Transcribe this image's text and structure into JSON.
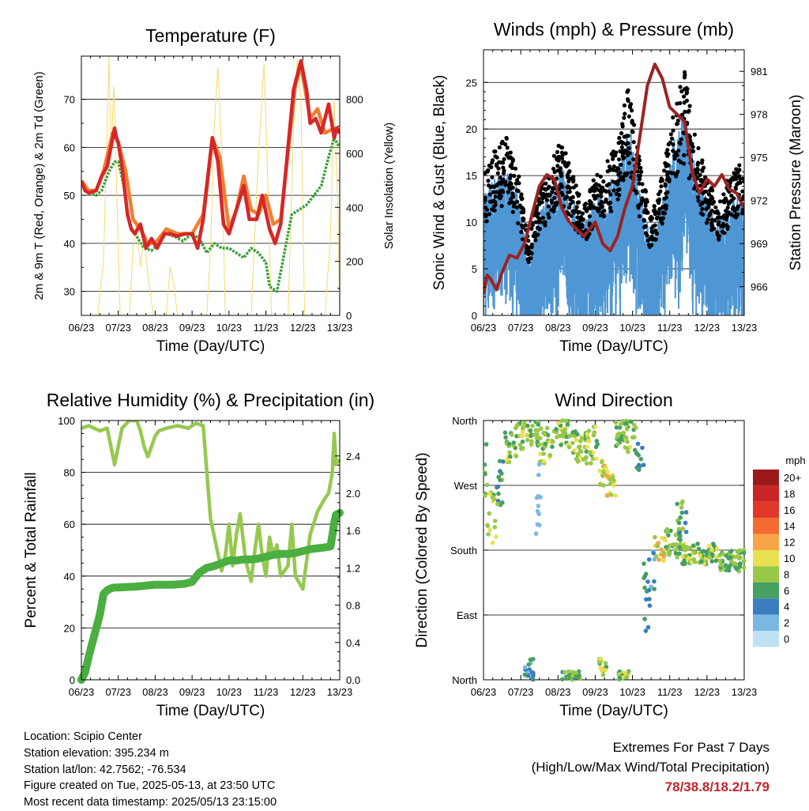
{
  "x_ticks": [
    "06/23",
    "07/23",
    "08/23",
    "09/23",
    "10/23",
    "11/23",
    "12/23",
    "13/23"
  ],
  "info": {
    "location": "Location: Scipio Center",
    "elevation": "Station elevation: 395.234 m",
    "latlon": "Station lat/lon: 42.7562; -76.534",
    "created": "Figure created on Tue, 2025-05-13, at 23:50 UTC",
    "recent": "Most recent data timestamp: 2025/05/13 23:15:00"
  },
  "extremes": {
    "line1": "Extremes For Past 7 Days",
    "line2": "(High/Low/Max Wind/Total Precipitation)",
    "values": "78/38.8/18.2/1.79"
  },
  "chart_data": [
    {
      "id": "temperature",
      "type": "line",
      "title": "Temperature (F)",
      "xlabel": "Time (Day/UTC)",
      "ylabel": "2m & 9m T (Red, Orange) & 2m Td (Green)",
      "ylabel_right": "Solar Insolation (Yellow)",
      "x_range": [
        0,
        7
      ],
      "ylim": [
        25,
        79
      ],
      "yticks": [
        30,
        40,
        50,
        60,
        70
      ],
      "ylim_right": [
        0,
        960
      ],
      "yticks_right": [
        0,
        200,
        400,
        600,
        800
      ],
      "colors": {
        "t2m": "#d62728",
        "t9m": "#f07f30",
        "td": "#3aa03a",
        "solar": "#f4dc6a"
      },
      "series": {
        "t2m": {
          "x": [
            0,
            0.1,
            0.2,
            0.4,
            0.55,
            0.7,
            0.85,
            0.9,
            0.95,
            1.0,
            1.1,
            1.25,
            1.35,
            1.45,
            1.6,
            1.75,
            1.9,
            2.05,
            2.25,
            2.4,
            2.6,
            2.8,
            3.0,
            3.15,
            3.3,
            3.55,
            3.7,
            3.85,
            4.0,
            4.2,
            4.4,
            4.55,
            4.75,
            4.9,
            5.1,
            5.25,
            5.4,
            5.6,
            5.75,
            5.95,
            6.1,
            6.2,
            6.35,
            6.5,
            6.7,
            6.85,
            6.92,
            7.0
          ],
          "y": [
            53,
            51,
            50.5,
            51,
            54,
            56,
            62,
            64,
            62,
            61,
            56,
            46,
            43,
            42,
            44,
            39,
            41,
            39,
            42,
            42,
            41.5,
            42,
            42,
            39,
            45,
            62,
            57,
            44,
            42,
            47,
            52,
            45,
            45,
            50,
            43,
            40,
            44,
            60,
            72,
            78,
            72,
            65,
            66,
            63,
            69,
            62,
            64,
            63
          ]
        },
        "t9m": {
          "x": [
            0,
            0.2,
            0.4,
            0.6,
            0.85,
            1.0,
            1.2,
            1.4,
            1.6,
            1.8,
            2.0,
            2.3,
            2.6,
            3.0,
            3.3,
            3.55,
            3.75,
            4.0,
            4.2,
            4.4,
            4.6,
            4.8,
            5.0,
            5.2,
            5.4,
            5.6,
            5.8,
            5.95,
            6.2,
            6.4,
            6.6,
            6.85,
            7.0
          ],
          "y": [
            53,
            51,
            51,
            55,
            63,
            61,
            55,
            45,
            43,
            40,
            40,
            43,
            42,
            42,
            46,
            62,
            58,
            43,
            47,
            54,
            47,
            46,
            50,
            44,
            45,
            59,
            73,
            77,
            66,
            68,
            63,
            64,
            63
          ]
        },
        "td": {
          "x": [
            0,
            0.2,
            0.4,
            0.55,
            0.75,
            0.9,
            1.0,
            1.15,
            1.3,
            1.45,
            1.7,
            1.9,
            2.1,
            2.3,
            2.5,
            2.75,
            3.0,
            3.2,
            3.4,
            3.6,
            3.8,
            4.0,
            4.2,
            4.4,
            4.6,
            4.8,
            5.0,
            5.1,
            5.3,
            5.5,
            5.7,
            5.9,
            6.1,
            6.3,
            6.5,
            6.7,
            6.85,
            7.0
          ],
          "y": [
            53,
            50.5,
            50,
            51,
            55,
            57,
            57,
            52,
            44,
            42,
            39,
            38.5,
            40,
            42,
            41.5,
            40.5,
            42,
            41,
            38,
            40,
            39,
            39,
            38,
            37,
            39,
            38,
            36,
            31,
            30,
            38,
            46,
            47,
            48,
            50,
            52,
            58,
            62,
            60
          ]
        },
        "solar": {
          "x": [
            0,
            0.45,
            0.6,
            0.68,
            0.75,
            0.8,
            0.88,
            0.95,
            1.05,
            1.3,
            1.4,
            1.5,
            1.6,
            1.7,
            1.8,
            1.95,
            2.1,
            2.3,
            2.4,
            2.5,
            2.6,
            2.8,
            3.4,
            3.5,
            3.6,
            3.7,
            3.8,
            3.9,
            4.1,
            4.6,
            4.8,
            4.95,
            5.05,
            5.15,
            5.3,
            5.6,
            5.75,
            5.85,
            5.95,
            6.05,
            6.2,
            6.6,
            6.75,
            6.85,
            6.95,
            7.0
          ],
          "y": [
            0,
            0,
            200,
            600,
            960,
            600,
            850,
            500,
            0,
            0,
            250,
            350,
            180,
            300,
            150,
            0,
            0,
            0,
            180,
            120,
            0,
            0,
            0,
            250,
            700,
            920,
            600,
            0,
            0,
            0,
            600,
            930,
            500,
            0,
            0,
            0,
            700,
            950,
            800,
            0,
            0,
            0,
            300,
            800,
            400,
            0
          ]
        }
      }
    },
    {
      "id": "winds",
      "type": "scatter",
      "title": "Winds (mph) & Pressure (mb)",
      "xlabel": "Time (Day/UTC)",
      "ylabel": "Sonic Wind & Gust (Blue, Black)",
      "ylabel_right": "Station Pressure (Maroon)",
      "x_range": [
        0,
        7
      ],
      "ylim": [
        0,
        28.5
      ],
      "yticks": [
        0,
        5,
        10,
        15,
        20,
        25
      ],
      "ylim_right": [
        964.0,
        982.5
      ],
      "yticks_right": [
        966,
        969,
        972,
        975,
        978,
        981
      ],
      "colors": {
        "wind": "#4f97d4",
        "gust": "#000000",
        "pressure": "#9c2323"
      },
      "wind_envelope": {
        "x": [
          0,
          0.3,
          0.6,
          0.9,
          1.2,
          1.5,
          1.8,
          2.1,
          2.4,
          2.7,
          3.0,
          3.3,
          3.6,
          3.9,
          4.2,
          4.5,
          4.8,
          5.1,
          5.4,
          5.7,
          6.0,
          6.3,
          6.6,
          6.9,
          7.0
        ],
        "y": [
          10,
          12,
          13,
          11,
          5,
          9,
          11,
          13,
          10,
          8,
          10,
          11,
          13,
          17,
          11,
          7,
          10,
          15,
          18,
          13,
          10,
          8,
          10,
          11,
          10
        ]
      },
      "pressure": {
        "x": [
          0,
          0.1,
          0.2,
          0.35,
          0.5,
          0.7,
          0.9,
          1.1,
          1.3,
          1.5,
          1.7,
          1.9,
          2.1,
          2.3,
          2.5,
          2.7,
          3.0,
          3.2,
          3.4,
          3.6,
          3.8,
          4.0,
          4.2,
          4.4,
          4.6,
          4.8,
          5.0,
          5.2,
          5.4,
          5.6,
          5.8,
          6.0,
          6.2,
          6.4,
          6.6,
          6.8,
          7.0
        ],
        "y": [
          965.5,
          966.8,
          966.5,
          965.8,
          967,
          968.2,
          968,
          969,
          971,
          973,
          973.8,
          973.5,
          971.5,
          970.5,
          970,
          969.5,
          970.5,
          969,
          968.5,
          969.5,
          971.5,
          973,
          976.5,
          980,
          981.5,
          980.5,
          978.5,
          978,
          977.5,
          974,
          972.5,
          973.5,
          973,
          973.8,
          972.8,
          972.5,
          971.5
        ]
      }
    },
    {
      "id": "humidity",
      "type": "line",
      "title": "Relative Humidity (%) & Precipitation (in)",
      "xlabel": "Time (Day/UTC)",
      "ylabel": "Percent & Total Rainfall",
      "x_range": [
        0,
        7
      ],
      "ylim": [
        0,
        100
      ],
      "yticks": [
        0,
        20,
        40,
        60,
        80,
        100
      ],
      "ylim_right": [
        0,
        2.78
      ],
      "yticks_right": [
        0.0,
        0.4,
        0.8,
        1.2,
        1.6,
        2.0,
        2.4
      ],
      "colors": {
        "rh": "#96c850",
        "precip": "#4aae40"
      },
      "rh": {
        "x": [
          0,
          0.2,
          0.5,
          0.7,
          0.8,
          0.9,
          1.0,
          1.1,
          1.3,
          1.5,
          1.6,
          1.7,
          1.8,
          1.9,
          2.0,
          2.1,
          2.3,
          2.6,
          2.9,
          3.1,
          3.3,
          3.5,
          3.65,
          3.8,
          3.9,
          4.0,
          4.1,
          4.2,
          4.3,
          4.45,
          4.6,
          4.7,
          4.8,
          4.9,
          5.0,
          5.1,
          5.2,
          5.3,
          5.4,
          5.6,
          5.7,
          5.8,
          6.0,
          6.2,
          6.4,
          6.6,
          6.7,
          6.8,
          6.85,
          6.9,
          7.0
        ],
        "y": [
          97,
          98,
          96,
          97,
          90,
          83,
          90,
          97,
          100,
          100,
          96,
          90,
          86,
          90,
          94,
          96,
          97,
          98,
          97,
          99,
          98,
          62,
          52,
          42,
          48,
          60,
          44,
          56,
          64,
          46,
          38,
          50,
          60,
          48,
          40,
          55,
          48,
          52,
          40,
          44,
          60,
          40,
          35,
          56,
          65,
          70,
          72,
          80,
          95,
          83,
          85
        ]
      },
      "precip": {
        "x": [
          0,
          0.1,
          0.2,
          0.3,
          0.4,
          0.5,
          0.6,
          0.7,
          0.8,
          0.9,
          1.0,
          1.5,
          2.0,
          2.5,
          2.8,
          3.0,
          3.2,
          3.4,
          3.6,
          3.8,
          4.0,
          4.2,
          4.4,
          4.6,
          4.8,
          5.0,
          5.2,
          5.4,
          5.6,
          5.8,
          6.0,
          6.2,
          6.4,
          6.6,
          6.75,
          6.8,
          6.85,
          6.9,
          7.0
        ],
        "y": [
          0,
          0.08,
          0.25,
          0.4,
          0.55,
          0.7,
          0.92,
          0.96,
          0.98,
          0.99,
          0.99,
          1.0,
          1.02,
          1.02,
          1.03,
          1.05,
          1.15,
          1.2,
          1.22,
          1.25,
          1.28,
          1.28,
          1.29,
          1.29,
          1.3,
          1.32,
          1.34,
          1.35,
          1.35,
          1.36,
          1.38,
          1.4,
          1.41,
          1.42,
          1.43,
          1.55,
          1.68,
          1.77,
          1.79
        ]
      }
    },
    {
      "id": "wind_direction",
      "type": "scatter",
      "title": "Wind Direction",
      "xlabel": "Time (Day/UTC)",
      "ylabel": "Direction (Colored By Speed)",
      "x_range": [
        0,
        7
      ],
      "ylim": [
        0,
        360
      ],
      "yticks": [
        "North",
        "East",
        "South",
        "West",
        "North"
      ],
      "legend_title": "mph",
      "legend_labels": [
        "20+",
        "18",
        "16",
        "14",
        "12",
        "10",
        "8",
        "6",
        "4",
        "2",
        "0"
      ],
      "legend_colors": [
        "#9c1a1c",
        "#c92428",
        "#e03828",
        "#f26a30",
        "#f8a448",
        "#e8e050",
        "#98c848",
        "#46a060",
        "#3a7ec0",
        "#7ab8e4",
        "#bee2f4"
      ],
      "legend_position": "right"
    }
  ]
}
